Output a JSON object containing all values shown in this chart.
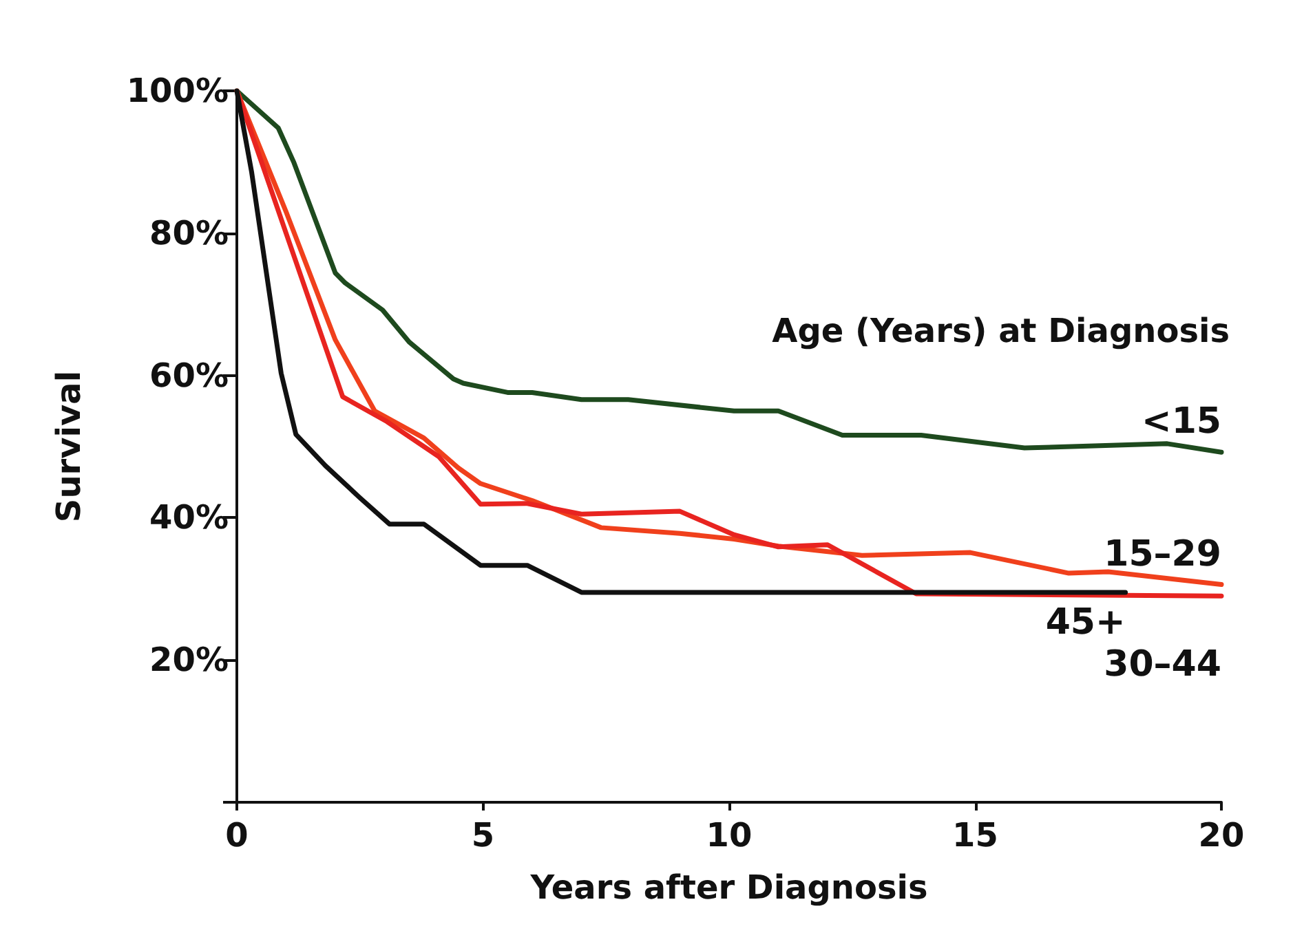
{
  "chart_data": {
    "type": "line",
    "xlabel": "Years after Diagnosis",
    "ylabel": "Survival",
    "legend_title": "Age (Years) at Diagnosis",
    "xlim": [
      0,
      20
    ],
    "xticks": [
      0,
      5,
      10,
      15,
      20
    ],
    "ylim": [
      0,
      100
    ],
    "yticks": [
      {
        "value": 0,
        "label": null
      },
      {
        "value": 20,
        "label": "20%"
      },
      {
        "value": 40,
        "label": "40%"
      },
      {
        "value": 60,
        "label": "60%"
      },
      {
        "value": 80,
        "label": "80%"
      },
      {
        "value": 100,
        "label": "100%"
      }
    ],
    "grid": false,
    "legend": false,
    "marker": "none",
    "line_style": "solid",
    "series": [
      {
        "name": "<15",
        "color": "#1e4a1e",
        "x": [
          0,
          0.84,
          1.16,
          2.0,
          2.2,
          2.96,
          3.5,
          4.4,
          4.6,
          5.5,
          6.0,
          7.0,
          7.95,
          10.1,
          11.0,
          12.3,
          13.9,
          16.0,
          18.9,
          20
        ],
        "values": [
          100,
          94.8,
          89.9,
          74.4,
          73,
          69.2,
          64.7,
          59.5,
          58.9,
          57.6,
          57.6,
          56.6,
          56.6,
          55,
          55,
          51.6,
          51.6,
          49.8,
          50.4,
          49.2
        ]
      },
      {
        "name": "15–29",
        "color": "#f0401c",
        "x": [
          0,
          1,
          2,
          2.8,
          3.8,
          4.5,
          4.95,
          6.0,
          7.4,
          9,
          10.1,
          11,
          12.7,
          14.9,
          16.9,
          17.7,
          20
        ],
        "values": [
          100,
          83,
          65,
          55,
          51.2,
          47,
          44.8,
          42.4,
          38.6,
          37.8,
          37,
          36,
          34.7,
          35.1,
          32.2,
          32.4,
          30.6
        ]
      },
      {
        "name": "30–44",
        "color": "#e82420",
        "x": [
          0,
          1,
          2.15,
          3.05,
          4.1,
          4.95,
          5.9,
          7,
          9.0,
          10.1,
          11,
          12,
          13.8,
          20
        ],
        "values": [
          100,
          80,
          57,
          53.5,
          48.6,
          41.9,
          42,
          40.5,
          40.9,
          37.6,
          35.9,
          36.2,
          29.3,
          29
        ]
      },
      {
        "name": "45+",
        "color": "#111111",
        "x": [
          0,
          0.3,
          0.9,
          1.2,
          1.8,
          2.5,
          3.1,
          3.8,
          4.95,
          5.9,
          7.0,
          18.05
        ],
        "values": [
          100,
          88.6,
          60.3,
          51.7,
          47.3,
          42.8,
          39.1,
          39.1,
          33.3,
          33.3,
          29.5,
          29.5
        ]
      }
    ]
  }
}
